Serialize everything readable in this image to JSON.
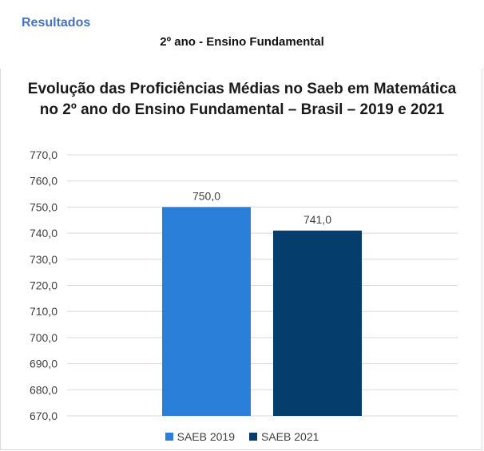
{
  "header": {
    "section": "Resultados",
    "subtitle": "2º ano - Ensino Fundamental"
  },
  "chart_data": {
    "type": "bar",
    "title_line1": "Evolução das Proficiências Médias no Saeb em Matemática",
    "title_line2": "no 2º ano do Ensino Fundamental – Brasil – 2019 e 2021",
    "xlabel": "",
    "ylabel": "",
    "ylim": [
      670,
      770
    ],
    "y_ticks": [
      "770,0",
      "760,0",
      "750,0",
      "740,0",
      "730,0",
      "720,0",
      "710,0",
      "700,0",
      "690,0",
      "680,0",
      "670,0"
    ],
    "grid": true,
    "legend_position": "bottom",
    "series": [
      {
        "name": "SAEB 2019",
        "values": [
          750.0
        ],
        "label": "750,0",
        "color": "#2a80d8"
      },
      {
        "name": "SAEB 2021",
        "values": [
          741.0
        ],
        "label": "741,0",
        "color": "#053d6d"
      }
    ]
  }
}
